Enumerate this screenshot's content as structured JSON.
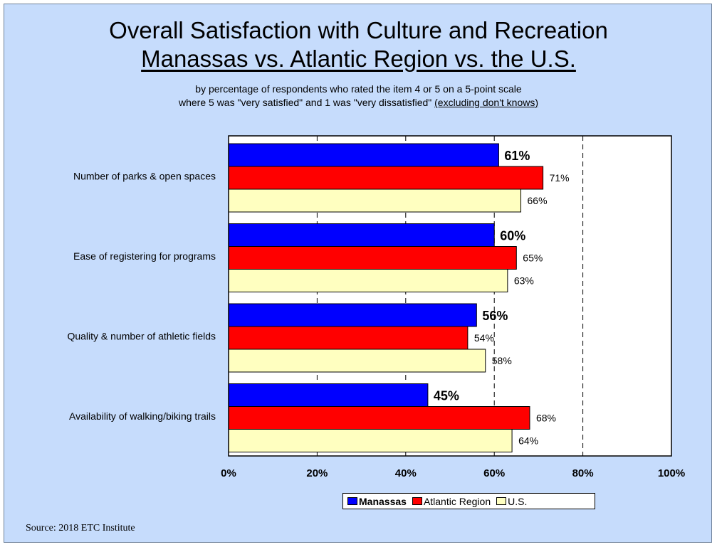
{
  "title": "Overall Satisfaction with Culture and Recreation",
  "subtitle_title": "Manassas vs. Atlantic Region vs. the U.S.",
  "subtitle_line1": "by percentage of respondents who rated the item 4 or 5 on a 5-point scale",
  "subtitle_line2": "where 5 was \"very satisfied\" and 1 was \"very dissatisfied\"",
  "subtitle_note": "(excluding don't knows)",
  "source": "Source:  2018 ETC Institute",
  "chart_data": {
    "type": "bar",
    "orientation": "horizontal",
    "categories": [
      "Number of parks & open spaces",
      "Ease of registering for programs",
      "Quality & number of athletic fields",
      "Availability of walking/biking trails"
    ],
    "series": [
      {
        "name": "Manassas",
        "color": "#0000ff",
        "values": [
          61,
          60,
          56,
          45
        ],
        "labels": [
          "61%",
          "60%",
          "56%",
          "45%"
        ],
        "bold": true
      },
      {
        "name": "Atlantic Region",
        "color": "#ff0000",
        "values": [
          71,
          65,
          54,
          68
        ],
        "labels": [
          "71%",
          "65%",
          "54%",
          "68%"
        ],
        "bold": false
      },
      {
        "name": "U.S.",
        "color": "#ffffc0",
        "values": [
          66,
          63,
          58,
          64
        ],
        "labels": [
          "66%",
          "63%",
          "58%",
          "64%"
        ],
        "bold": false
      }
    ],
    "xlim": [
      0,
      100
    ],
    "x_ticks": [
      0,
      20,
      40,
      60,
      80,
      100
    ],
    "x_tick_labels": [
      "0%",
      "20%",
      "40%",
      "60%",
      "80%",
      "100%"
    ],
    "grid": "dashed vertical",
    "legend_position": "bottom"
  }
}
